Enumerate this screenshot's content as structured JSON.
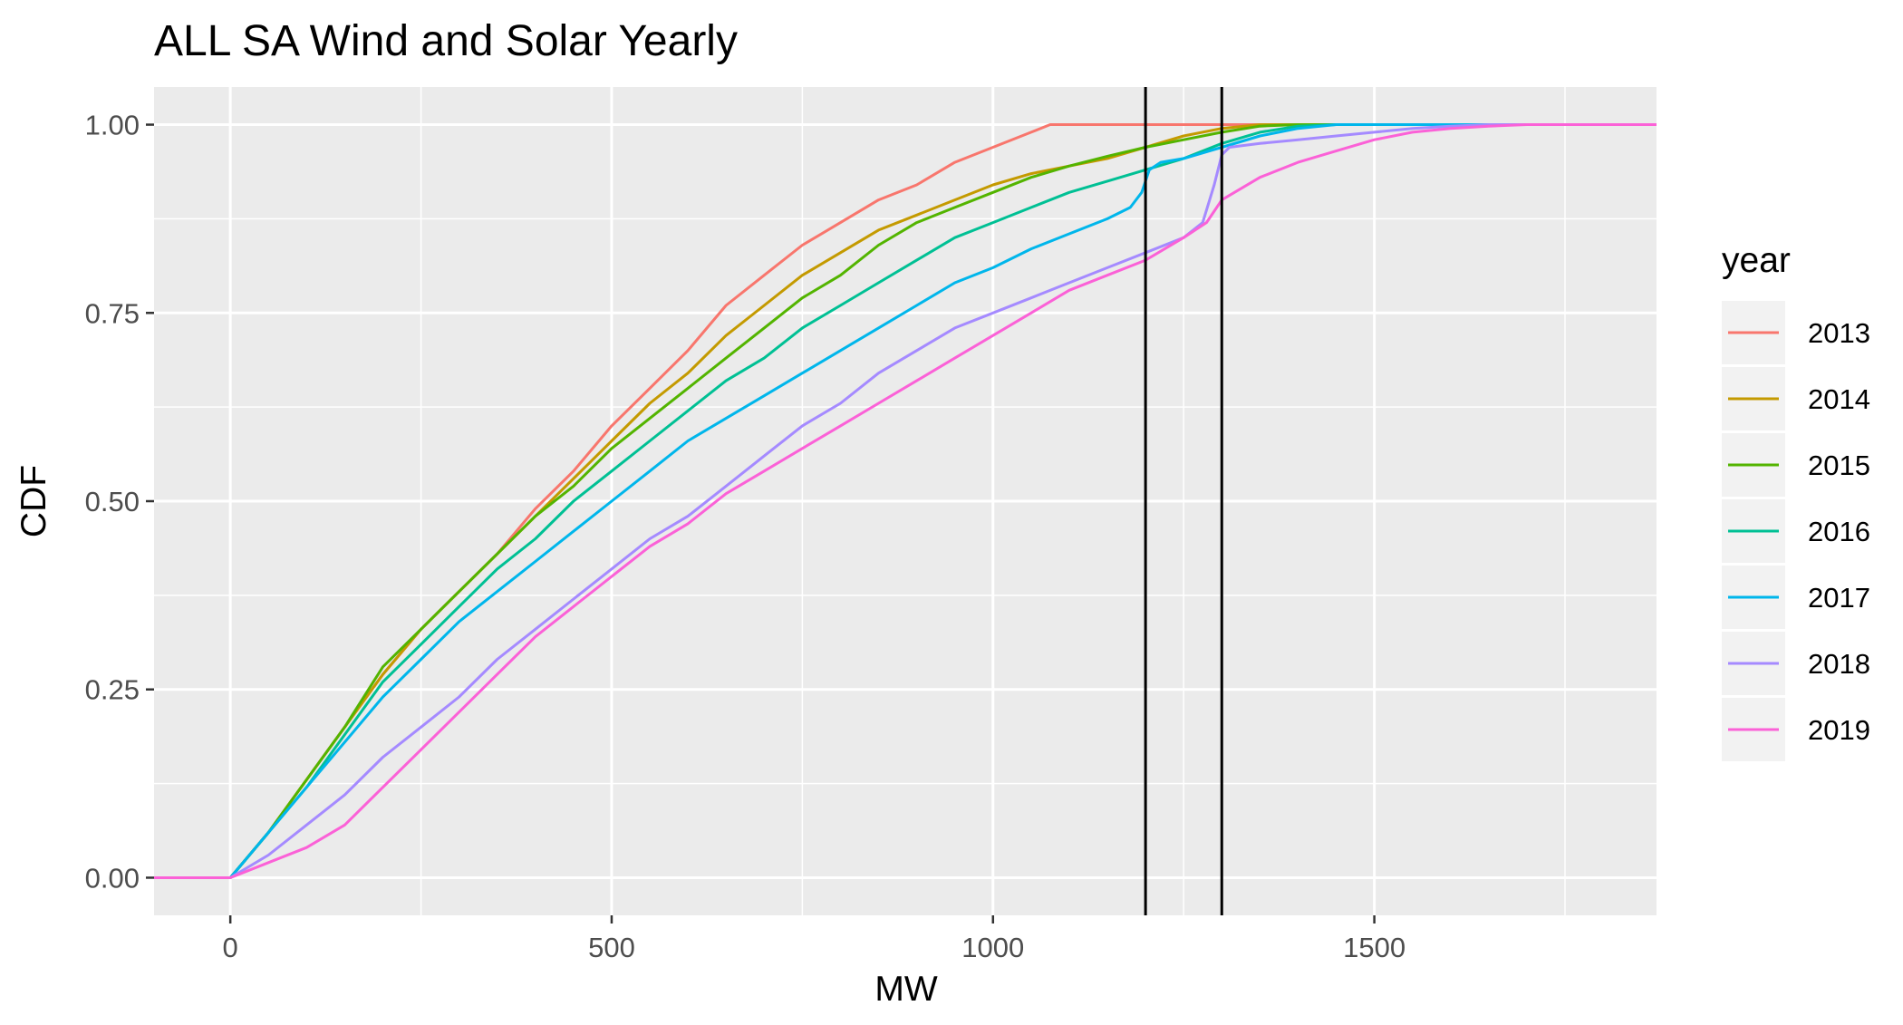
{
  "chart_data": {
    "type": "line",
    "title": "ALL SA Wind and Solar Yearly",
    "xlabel": "MW",
    "ylabel": "CDF",
    "xlim": [
      -100,
      1870
    ],
    "ylim": [
      -0.05,
      1.05
    ],
    "x_ticks": [
      0,
      500,
      1000,
      1500
    ],
    "x_tick_labels": [
      "0",
      "500",
      "1000",
      "1500"
    ],
    "x_minor": [
      250,
      750,
      1250,
      1750
    ],
    "y_ticks": [
      0,
      0.25,
      0.5,
      0.75,
      1.0
    ],
    "y_tick_labels": [
      "0.00",
      "0.25",
      "0.50",
      "0.75",
      "1.00"
    ],
    "y_minor": [
      0.125,
      0.375,
      0.625,
      0.875
    ],
    "grid": true,
    "panel_background": "#ebebeb",
    "grid_color": "#ffffff",
    "vlines": [
      1200,
      1300
    ],
    "vline_color": "#000000",
    "legend": {
      "title": "year",
      "position": "right"
    },
    "series": [
      {
        "name": "2013",
        "color": "#F8766D",
        "points": [
          [
            -100,
            0
          ],
          [
            0,
            0
          ],
          [
            50,
            0.06
          ],
          [
            100,
            0.13
          ],
          [
            150,
            0.2
          ],
          [
            200,
            0.27
          ],
          [
            250,
            0.33
          ],
          [
            300,
            0.38
          ],
          [
            350,
            0.43
          ],
          [
            400,
            0.49
          ],
          [
            450,
            0.54
          ],
          [
            500,
            0.6
          ],
          [
            550,
            0.65
          ],
          [
            600,
            0.7
          ],
          [
            650,
            0.76
          ],
          [
            700,
            0.8
          ],
          [
            750,
            0.84
          ],
          [
            800,
            0.87
          ],
          [
            850,
            0.9
          ],
          [
            900,
            0.92
          ],
          [
            950,
            0.95
          ],
          [
            1000,
            0.97
          ],
          [
            1050,
            0.99
          ],
          [
            1075,
            1.0
          ],
          [
            1870,
            1.0
          ]
        ]
      },
      {
        "name": "2014",
        "color": "#C49A00",
        "points": [
          [
            -100,
            0
          ],
          [
            0,
            0
          ],
          [
            50,
            0.06
          ],
          [
            100,
            0.13
          ],
          [
            150,
            0.2
          ],
          [
            200,
            0.27
          ],
          [
            250,
            0.33
          ],
          [
            300,
            0.38
          ],
          [
            350,
            0.43
          ],
          [
            400,
            0.48
          ],
          [
            450,
            0.53
          ],
          [
            500,
            0.58
          ],
          [
            550,
            0.63
          ],
          [
            600,
            0.67
          ],
          [
            650,
            0.72
          ],
          [
            700,
            0.76
          ],
          [
            750,
            0.8
          ],
          [
            800,
            0.83
          ],
          [
            850,
            0.86
          ],
          [
            900,
            0.88
          ],
          [
            950,
            0.9
          ],
          [
            1000,
            0.92
          ],
          [
            1050,
            0.935
          ],
          [
            1100,
            0.945
          ],
          [
            1150,
            0.955
          ],
          [
            1200,
            0.97
          ],
          [
            1250,
            0.985
          ],
          [
            1300,
            0.995
          ],
          [
            1350,
            1.0
          ],
          [
            1870,
            1.0
          ]
        ]
      },
      {
        "name": "2015",
        "color": "#53B400",
        "points": [
          [
            -100,
            0
          ],
          [
            0,
            0
          ],
          [
            50,
            0.06
          ],
          [
            100,
            0.13
          ],
          [
            150,
            0.2
          ],
          [
            200,
            0.28
          ],
          [
            250,
            0.33
          ],
          [
            300,
            0.38
          ],
          [
            350,
            0.43
          ],
          [
            400,
            0.48
          ],
          [
            450,
            0.52
          ],
          [
            500,
            0.57
          ],
          [
            550,
            0.61
          ],
          [
            600,
            0.65
          ],
          [
            650,
            0.69
          ],
          [
            700,
            0.73
          ],
          [
            750,
            0.77
          ],
          [
            800,
            0.8
          ],
          [
            850,
            0.84
          ],
          [
            900,
            0.87
          ],
          [
            950,
            0.89
          ],
          [
            1000,
            0.91
          ],
          [
            1050,
            0.93
          ],
          [
            1100,
            0.945
          ],
          [
            1150,
            0.958
          ],
          [
            1200,
            0.97
          ],
          [
            1250,
            0.98
          ],
          [
            1300,
            0.99
          ],
          [
            1350,
            0.998
          ],
          [
            1400,
            1.0
          ],
          [
            1870,
            1.0
          ]
        ]
      },
      {
        "name": "2016",
        "color": "#00C094",
        "points": [
          [
            -100,
            0
          ],
          [
            0,
            0
          ],
          [
            50,
            0.06
          ],
          [
            100,
            0.12
          ],
          [
            150,
            0.19
          ],
          [
            200,
            0.26
          ],
          [
            250,
            0.31
          ],
          [
            300,
            0.36
          ],
          [
            350,
            0.41
          ],
          [
            400,
            0.45
          ],
          [
            450,
            0.5
          ],
          [
            500,
            0.54
          ],
          [
            550,
            0.58
          ],
          [
            600,
            0.62
          ],
          [
            650,
            0.66
          ],
          [
            700,
            0.69
          ],
          [
            750,
            0.73
          ],
          [
            800,
            0.76
          ],
          [
            850,
            0.79
          ],
          [
            900,
            0.82
          ],
          [
            950,
            0.85
          ],
          [
            1000,
            0.87
          ],
          [
            1050,
            0.89
          ],
          [
            1100,
            0.91
          ],
          [
            1150,
            0.925
          ],
          [
            1200,
            0.94
          ],
          [
            1250,
            0.955
          ],
          [
            1300,
            0.975
          ],
          [
            1350,
            0.99
          ],
          [
            1400,
            0.998
          ],
          [
            1450,
            1.0
          ],
          [
            1870,
            1.0
          ]
        ]
      },
      {
        "name": "2017",
        "color": "#00B6EB",
        "points": [
          [
            -100,
            0
          ],
          [
            0,
            0
          ],
          [
            50,
            0.06
          ],
          [
            100,
            0.12
          ],
          [
            150,
            0.18
          ],
          [
            200,
            0.24
          ],
          [
            250,
            0.29
          ],
          [
            300,
            0.34
          ],
          [
            350,
            0.38
          ],
          [
            400,
            0.42
          ],
          [
            450,
            0.46
          ],
          [
            500,
            0.5
          ],
          [
            550,
            0.54
          ],
          [
            600,
            0.58
          ],
          [
            650,
            0.61
          ],
          [
            700,
            0.64
          ],
          [
            750,
            0.67
          ],
          [
            800,
            0.7
          ],
          [
            850,
            0.73
          ],
          [
            900,
            0.76
          ],
          [
            950,
            0.79
          ],
          [
            1000,
            0.81
          ],
          [
            1050,
            0.835
          ],
          [
            1100,
            0.855
          ],
          [
            1150,
            0.875
          ],
          [
            1180,
            0.89
          ],
          [
            1195,
            0.91
          ],
          [
            1205,
            0.94
          ],
          [
            1220,
            0.95
          ],
          [
            1250,
            0.955
          ],
          [
            1300,
            0.97
          ],
          [
            1350,
            0.985
          ],
          [
            1400,
            0.995
          ],
          [
            1450,
            1.0
          ],
          [
            1870,
            1.0
          ]
        ]
      },
      {
        "name": "2018",
        "color": "#A58AFF",
        "points": [
          [
            -100,
            0
          ],
          [
            0,
            0
          ],
          [
            50,
            0.03
          ],
          [
            100,
            0.07
          ],
          [
            150,
            0.11
          ],
          [
            200,
            0.16
          ],
          [
            250,
            0.2
          ],
          [
            300,
            0.24
          ],
          [
            350,
            0.29
          ],
          [
            400,
            0.33
          ],
          [
            450,
            0.37
          ],
          [
            500,
            0.41
          ],
          [
            550,
            0.45
          ],
          [
            600,
            0.48
          ],
          [
            650,
            0.52
          ],
          [
            700,
            0.56
          ],
          [
            750,
            0.6
          ],
          [
            800,
            0.63
          ],
          [
            850,
            0.67
          ],
          [
            900,
            0.7
          ],
          [
            950,
            0.73
          ],
          [
            1000,
            0.75
          ],
          [
            1050,
            0.77
          ],
          [
            1100,
            0.79
          ],
          [
            1150,
            0.81
          ],
          [
            1200,
            0.83
          ],
          [
            1250,
            0.85
          ],
          [
            1275,
            0.87
          ],
          [
            1290,
            0.92
          ],
          [
            1300,
            0.96
          ],
          [
            1310,
            0.97
          ],
          [
            1350,
            0.975
          ],
          [
            1400,
            0.98
          ],
          [
            1450,
            0.985
          ],
          [
            1500,
            0.99
          ],
          [
            1550,
            0.995
          ],
          [
            1600,
            0.998
          ],
          [
            1650,
            1.0
          ],
          [
            1870,
            1.0
          ]
        ]
      },
      {
        "name": "2019",
        "color": "#FB61D7",
        "points": [
          [
            -100,
            0
          ],
          [
            0,
            0
          ],
          [
            50,
            0.02
          ],
          [
            100,
            0.04
          ],
          [
            150,
            0.07
          ],
          [
            200,
            0.12
          ],
          [
            250,
            0.17
          ],
          [
            300,
            0.22
          ],
          [
            350,
            0.27
          ],
          [
            400,
            0.32
          ],
          [
            450,
            0.36
          ],
          [
            500,
            0.4
          ],
          [
            550,
            0.44
          ],
          [
            600,
            0.47
          ],
          [
            650,
            0.51
          ],
          [
            700,
            0.54
          ],
          [
            750,
            0.57
          ],
          [
            800,
            0.6
          ],
          [
            850,
            0.63
          ],
          [
            900,
            0.66
          ],
          [
            950,
            0.69
          ],
          [
            1000,
            0.72
          ],
          [
            1050,
            0.75
          ],
          [
            1100,
            0.78
          ],
          [
            1150,
            0.8
          ],
          [
            1200,
            0.82
          ],
          [
            1250,
            0.85
          ],
          [
            1280,
            0.87
          ],
          [
            1300,
            0.9
          ],
          [
            1350,
            0.93
          ],
          [
            1400,
            0.95
          ],
          [
            1450,
            0.965
          ],
          [
            1500,
            0.98
          ],
          [
            1550,
            0.99
          ],
          [
            1600,
            0.995
          ],
          [
            1650,
            0.998
          ],
          [
            1700,
            1.0
          ],
          [
            1870,
            1.0
          ]
        ]
      }
    ]
  }
}
